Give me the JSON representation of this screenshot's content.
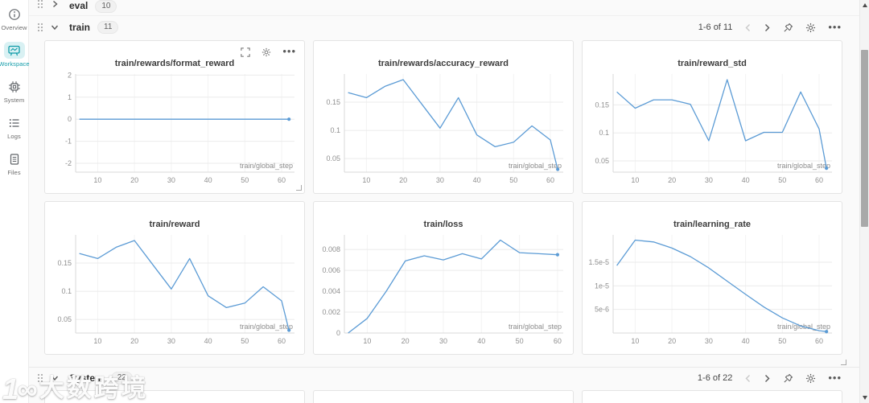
{
  "sidebar": {
    "items": [
      {
        "id": "overview",
        "label": "Overview",
        "icon": "info-icon",
        "active": false
      },
      {
        "id": "workspace",
        "label": "Workspace",
        "icon": "workspace-icon",
        "active": true
      },
      {
        "id": "system",
        "label": "System",
        "icon": "chip-icon",
        "active": false
      },
      {
        "id": "logs",
        "label": "Logs",
        "icon": "logs-icon",
        "active": false
      },
      {
        "id": "files",
        "label": "Files",
        "icon": "files-icon",
        "active": false
      }
    ]
  },
  "sections": {
    "eval": {
      "label": "eval",
      "count": "10",
      "collapsed": true
    },
    "train": {
      "label": "train",
      "count": "11",
      "pagination": "1-6 of 11"
    },
    "system": {
      "label": "System",
      "count": "22",
      "pagination": "1-6 of 22"
    }
  },
  "colors": {
    "line": "#5b9bd5",
    "accent_teal": "#0f9ba8"
  },
  "watermark": {
    "logo": "1∞",
    "text": "大数跨境"
  },
  "chart_data": [
    {
      "type": "line",
      "title": "train/rewards/format_reward",
      "xlabel": "train/global_step",
      "x": [
        5,
        10,
        15,
        20,
        25,
        30,
        35,
        40,
        45,
        50,
        55,
        60,
        62
      ],
      "values": [
        0,
        0,
        0,
        0,
        0,
        0,
        0,
        0,
        0,
        0,
        0,
        0,
        0
      ],
      "xticks": [
        10,
        20,
        30,
        40,
        50,
        60
      ],
      "xlim": [
        4,
        63.5
      ],
      "yticks": [
        {
          "v": 2,
          "label": "2"
        },
        {
          "v": 1,
          "label": "1"
        },
        {
          "v": 0,
          "label": "0"
        },
        {
          "v": -1,
          "label": "-1"
        },
        {
          "v": -2,
          "label": "-2"
        }
      ],
      "ylim": [
        -2.4,
        2.05
      ],
      "end_dot": true,
      "hover_controls": true,
      "grid": true,
      "legend": "none"
    },
    {
      "type": "line",
      "title": "train/rewards/accuracy_reward",
      "xlabel": "train/global_step",
      "x": [
        5,
        10,
        15,
        20,
        25,
        30,
        35,
        40,
        45,
        50,
        55,
        60,
        62
      ],
      "values": [
        0.167,
        0.158,
        0.178,
        0.19,
        0.147,
        0.104,
        0.158,
        0.092,
        0.071,
        0.079,
        0.108,
        0.083,
        0.031
      ],
      "xticks": [
        10,
        20,
        30,
        40,
        50,
        60
      ],
      "xlim": [
        4,
        63.5
      ],
      "yticks": [
        {
          "v": 0.15,
          "label": "0.15"
        },
        {
          "v": 0.1,
          "label": "0.1"
        },
        {
          "v": 0.05,
          "label": "0.05"
        }
      ],
      "ylim": [
        0.026,
        0.2
      ],
      "end_dot": true,
      "hover_controls": false,
      "grid": true,
      "legend": "none"
    },
    {
      "type": "line",
      "title": "train/reward_std",
      "xlabel": "train/global_step",
      "x": [
        5,
        10,
        15,
        20,
        25,
        30,
        35,
        40,
        45,
        50,
        55,
        60,
        62
      ],
      "values": [
        0.173,
        0.144,
        0.159,
        0.159,
        0.151,
        0.086,
        0.195,
        0.086,
        0.101,
        0.101,
        0.173,
        0.107,
        0.037
      ],
      "xticks": [
        10,
        20,
        30,
        40,
        50,
        60
      ],
      "xlim": [
        4,
        63.5
      ],
      "yticks": [
        {
          "v": 0.15,
          "label": "0.15"
        },
        {
          "v": 0.1,
          "label": "0.1"
        },
        {
          "v": 0.05,
          "label": "0.05"
        }
      ],
      "ylim": [
        0.03,
        0.205
      ],
      "end_dot": true,
      "hover_controls": false,
      "grid": true,
      "legend": "none"
    },
    {
      "type": "line",
      "title": "train/reward",
      "xlabel": "train/global_step",
      "x": [
        5,
        10,
        15,
        20,
        25,
        30,
        35,
        40,
        45,
        50,
        55,
        60,
        62
      ],
      "values": [
        0.167,
        0.158,
        0.178,
        0.19,
        0.147,
        0.104,
        0.158,
        0.092,
        0.071,
        0.079,
        0.108,
        0.083,
        0.031
      ],
      "xticks": [
        10,
        20,
        30,
        40,
        50,
        60
      ],
      "xlim": [
        4,
        63.5
      ],
      "yticks": [
        {
          "v": 0.15,
          "label": "0.15"
        },
        {
          "v": 0.1,
          "label": "0.1"
        },
        {
          "v": 0.05,
          "label": "0.05"
        }
      ],
      "ylim": [
        0.026,
        0.2
      ],
      "end_dot": true,
      "hover_controls": false,
      "grid": true,
      "legend": "none"
    },
    {
      "type": "line",
      "title": "train/loss",
      "xlabel": "train/global_step",
      "x": [
        5,
        10,
        15,
        20,
        25,
        30,
        35,
        40,
        45,
        50,
        55,
        60
      ],
      "values": [
        0.0,
        0.0014,
        0.004,
        0.0069,
        0.0074,
        0.007,
        0.0076,
        0.0071,
        0.0089,
        0.0077,
        0.0076,
        0.0075
      ],
      "xticks": [
        10,
        20,
        30,
        40,
        50,
        60
      ],
      "xlim": [
        4,
        61.5
      ],
      "yticks": [
        {
          "v": 0.008,
          "label": "0.008"
        },
        {
          "v": 0.006,
          "label": "0.006"
        },
        {
          "v": 0.004,
          "label": "0.004"
        },
        {
          "v": 0.002,
          "label": "0.002"
        },
        {
          "v": 0,
          "label": "0"
        }
      ],
      "ylim": [
        0,
        0.0094
      ],
      "end_dot": true,
      "hover_controls": false,
      "grid": true,
      "legend": "none"
    },
    {
      "type": "line",
      "title": "train/learning_rate",
      "xlabel": "train/global_step",
      "x": [
        5,
        10,
        15,
        20,
        25,
        30,
        35,
        40,
        45,
        50,
        55,
        60,
        62
      ],
      "values": [
        1.43e-05,
        1.97e-05,
        1.93e-05,
        1.8e-05,
        1.62e-05,
        1.38e-05,
        1.1e-05,
        8.2e-06,
        5.5e-06,
        3.2e-06,
        1.5e-06,
        5e-07,
        3e-07
      ],
      "xticks": [
        10,
        20,
        30,
        40,
        50,
        60
      ],
      "xlim": [
        4,
        63.5
      ],
      "yticks": [
        {
          "v": 1.5e-05,
          "label": "1.5e-5"
        },
        {
          "v": 1e-05,
          "label": "1e-5"
        },
        {
          "v": 5e-06,
          "label": "5e-6"
        }
      ],
      "ylim": [
        0,
        2.08e-05
      ],
      "end_dot": true,
      "hover_controls": false,
      "grid": true,
      "legend": "none"
    }
  ]
}
